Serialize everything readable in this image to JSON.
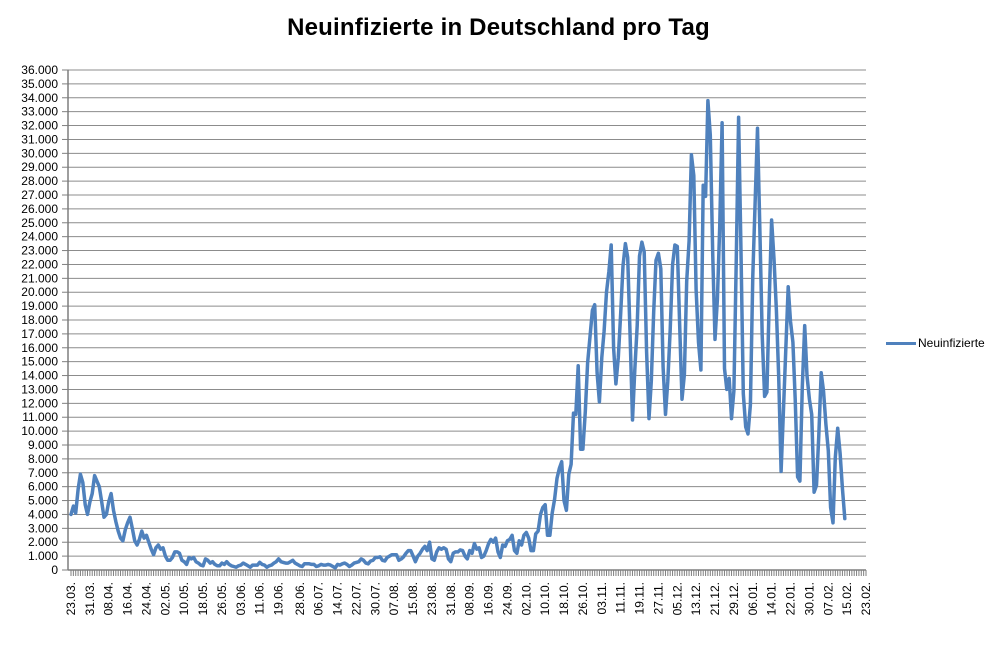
{
  "chart_data": {
    "type": "line",
    "title": "Neuinfizierte in Deutschland pro Tag",
    "xlabel": "",
    "ylabel": "",
    "grid": "horizontal",
    "y_axis": {
      "min": 0,
      "max": 36000,
      "step": 1000,
      "tick_labels": [
        "36.000",
        "35.000",
        "34.000",
        "33.000",
        "32.000",
        "31.000",
        "30.000",
        "29.000",
        "28.000",
        "27.000",
        "26.000",
        "25.000",
        "24.000",
        "23.000",
        "22.000",
        "21.000",
        "20.000",
        "19.000",
        "18.000",
        "17.000",
        "16.000",
        "15.000",
        "14.000",
        "13.000",
        "12.000",
        "11.000",
        "10.000",
        "9.000",
        "8.000",
        "7.000",
        "6.000",
        "5.000",
        "4.000",
        "3.000",
        "2.000",
        "1.000",
        "0"
      ]
    },
    "x_tick_labels": [
      "23.03.",
      "31.03.",
      "08.04.",
      "16.04.",
      "24.04.",
      "02.05.",
      "10.05.",
      "18.05.",
      "26.05.",
      "03.06.",
      "11.06.",
      "19.06.",
      "28.06.",
      "06.07.",
      "14.07.",
      "22.07.",
      "30.07.",
      "07.08.",
      "15.08.",
      "23.08.",
      "31.08.",
      "08.09.",
      "16.09.",
      "24.09.",
      "02.10.",
      "10.10.",
      "18.10.",
      "26.10.",
      "03.11.",
      "11.11.",
      "19.11.",
      "27.11.",
      "05.12.",
      "13.12.",
      "21.12.",
      "29.12.",
      "06.01.",
      "14.01.",
      "22.01.",
      "30.01.",
      "07.02.",
      "15.02.",
      "23.02."
    ],
    "x_tick_day_offsets": [
      0,
      8,
      16,
      24,
      32,
      40,
      48,
      56,
      64,
      72,
      80,
      88,
      97,
      105,
      113,
      121,
      129,
      137,
      145,
      153,
      161,
      169,
      177,
      185,
      193,
      201,
      209,
      217,
      225,
      233,
      241,
      249,
      257,
      265,
      273,
      281,
      289,
      297,
      305,
      313,
      321,
      329,
      337
    ],
    "total_days": 337,
    "legend": {
      "position": "right"
    },
    "series": [
      {
        "name": "Neuinfizierte",
        "color": "#4F81BD",
        "start_label": "23.03.",
        "values": [
          4000,
          4600,
          4100,
          5800,
          6900,
          6300,
          4700,
          4000,
          4900,
          5500,
          6800,
          6400,
          6000,
          4900,
          3800,
          4000,
          4900,
          5500,
          4300,
          3500,
          2800,
          2300,
          2100,
          2900,
          3400,
          3800,
          3000,
          2100,
          1800,
          2200,
          2800,
          2300,
          2500,
          2000,
          1500,
          1100,
          1600,
          1800,
          1500,
          1600,
          1000,
          700,
          700,
          900,
          1300,
          1300,
          1200,
          700,
          600,
          400,
          900,
          800,
          900,
          600,
          500,
          350,
          300,
          800,
          700,
          500,
          600,
          400,
          300,
          300,
          500,
          400,
          600,
          400,
          300,
          250,
          200,
          300,
          350,
          500,
          400,
          300,
          200,
          350,
          350,
          350,
          550,
          400,
          350,
          200,
          300,
          350,
          500,
          600,
          800,
          600,
          550,
          500,
          500,
          600,
          700,
          500,
          400,
          300,
          250,
          450,
          450,
          450,
          400,
          400,
          250,
          300,
          400,
          350,
          350,
          400,
          350,
          250,
          150,
          400,
          350,
          450,
          500,
          400,
          250,
          350,
          500,
          550,
          600,
          800,
          700,
          500,
          450,
          650,
          700,
          900,
          900,
          950,
          700,
          650,
          900,
          1000,
          1100,
          1100,
          1100,
          700,
          800,
          950,
          1200,
          1400,
          1400,
          1000,
          600,
          1000,
          1200,
          1500,
          1700,
          1400,
          2000,
          800,
          700,
          1300,
          1600,
          1500,
          1600,
          1500,
          800,
          600,
          1200,
          1300,
          1300,
          1450,
          1400,
          1000,
          800,
          1400,
          1200,
          1900,
          1500,
          1600,
          900,
          1000,
          1400,
          1900,
          2200,
          2000,
          2300,
          1300,
          900,
          1800,
          1700,
          2100,
          2200,
          2500,
          1400,
          1200,
          2100,
          1800,
          2500,
          2700,
          2300,
          1400,
          1400,
          2600,
          2800,
          4000,
          4500,
          4700,
          2500,
          2500,
          4100,
          5100,
          6600,
          7300,
          7800,
          5000,
          4300,
          6900,
          7600,
          11300,
          11200,
          14700,
          8700,
          8700,
          11400,
          14900,
          16800,
          18700,
          19100,
          14200,
          12100,
          15300,
          17200,
          20000,
          21500,
          23400,
          16000,
          13400,
          15300,
          18500,
          21900,
          23500,
          22500,
          16900,
          10800,
          14400,
          17600,
          22600,
          23600,
          22900,
          15700,
          10900,
          13600,
          18600,
          22300,
          22800,
          21700,
          14600,
          11200,
          13600,
          17300,
          22000,
          23400,
          23300,
          17800,
          12300,
          14100,
          20800,
          23700,
          29900,
          28400,
          20200,
          16400,
          14400,
          27700,
          26900,
          33800,
          31300,
          22800,
          16600,
          19500,
          24700,
          32200,
          14500,
          13000,
          13800,
          10900,
          12900,
          22500,
          32600,
          22900,
          12700,
          10300,
          9800,
          11900,
          21200,
          26400,
          31800,
          24700,
          16900,
          12500,
          12800,
          19600,
          25200,
          22400,
          18700,
          13900,
          7100,
          11400,
          15900,
          20400,
          17900,
          16400,
          12300,
          6700,
          6400,
          13200,
          17600,
          14000,
          12300,
          11200,
          5600,
          6100,
          9700,
          14200,
          12900,
          10500,
          8600,
          4500,
          3400,
          8100,
          10200,
          8400,
          5900,
          3700
        ]
      }
    ]
  },
  "colors": {
    "line": "#4F81BD",
    "gridline": "#8C8C8C",
    "axis": "#7F7F7F",
    "text": "#000000",
    "background": "#FFFFFF"
  }
}
